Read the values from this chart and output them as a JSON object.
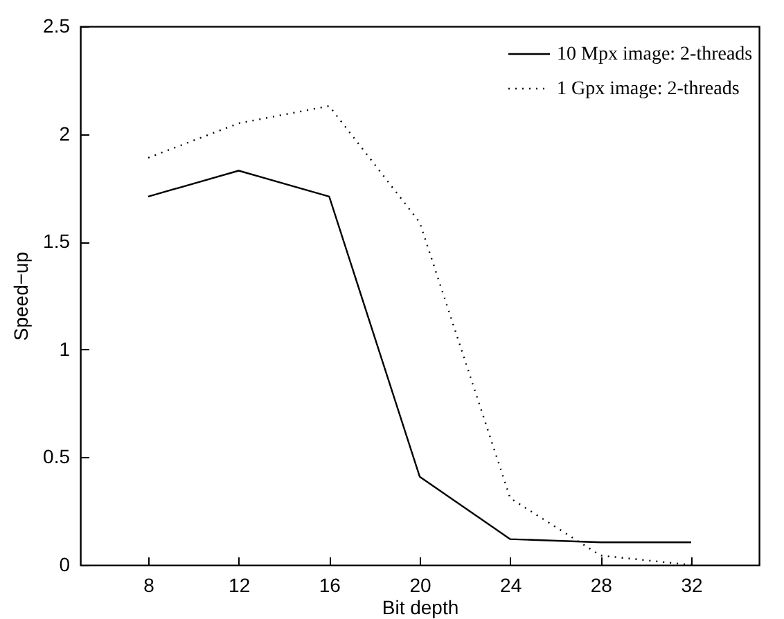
{
  "chart_data": {
    "type": "line",
    "xlabel": "Bit depth",
    "ylabel": "Speed−up",
    "x": [
      8,
      12,
      16,
      20,
      24,
      28,
      32
    ],
    "series": [
      {
        "name": "10 Mpx image: 2-threads",
        "color": "#000000",
        "line_style": "solid",
        "values": [
          1.71,
          1.83,
          1.71,
          0.41,
          0.12,
          0.105,
          0.105
        ]
      },
      {
        "name": "1 Gpx image: 2-threads",
        "color": "#000000",
        "line_style": "dotted",
        "values": [
          1.89,
          2.05,
          2.13,
          1.59,
          0.31,
          0.044,
          0.0
        ]
      }
    ],
    "xlim": [
      5,
      35
    ],
    "xticks": [
      8,
      12,
      16,
      20,
      24,
      28,
      32
    ],
    "ylim": [
      0,
      2.5
    ],
    "yticks": [
      0,
      0.5,
      1,
      1.5,
      2,
      2.5
    ],
    "grid": false,
    "legend": "top right",
    "marker": "none"
  }
}
